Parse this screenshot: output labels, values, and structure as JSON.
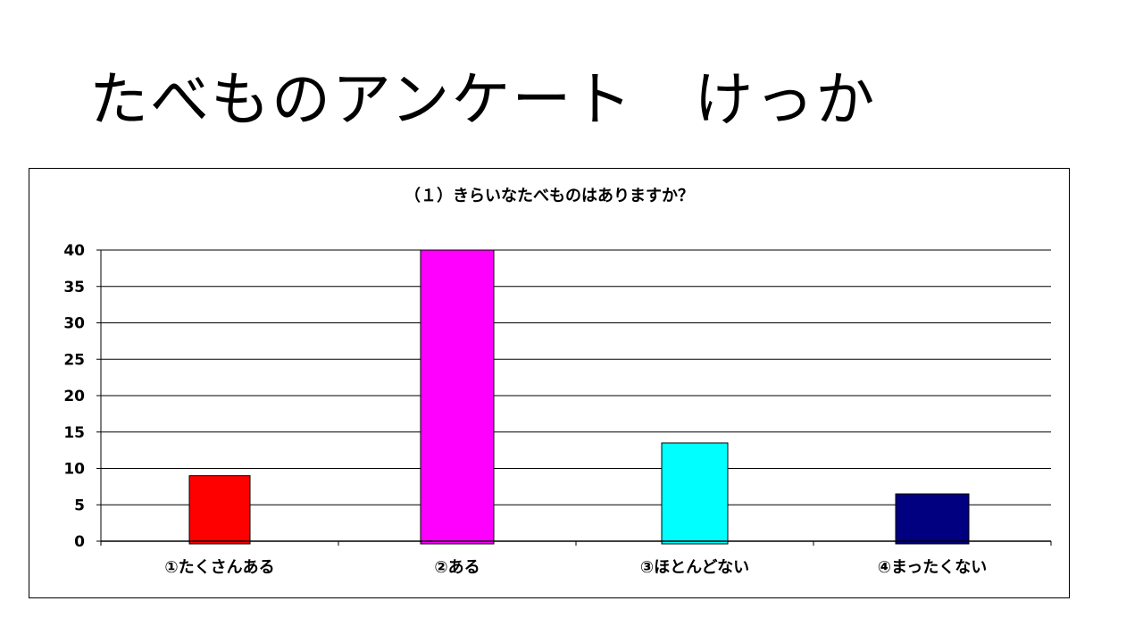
{
  "slide": {
    "title": "たべものアンケート　けっか"
  },
  "chart_data": {
    "type": "bar",
    "title": "（１）きらいなたべものはありますか？",
    "categories": [
      "①たくさんある",
      "②ある",
      "③ほとんどない",
      "④まったくない"
    ],
    "values": [
      9,
      40,
      13.5,
      6.5
    ],
    "ylim": [
      0,
      40
    ],
    "yticks": [
      0,
      5,
      10,
      15,
      20,
      25,
      30,
      35,
      40
    ],
    "xlabel": "",
    "ylabel": "",
    "grid": true,
    "legend": "none",
    "colors": [
      "#ff0000",
      "#ff00ff",
      "#00ffff",
      "#000080"
    ]
  }
}
